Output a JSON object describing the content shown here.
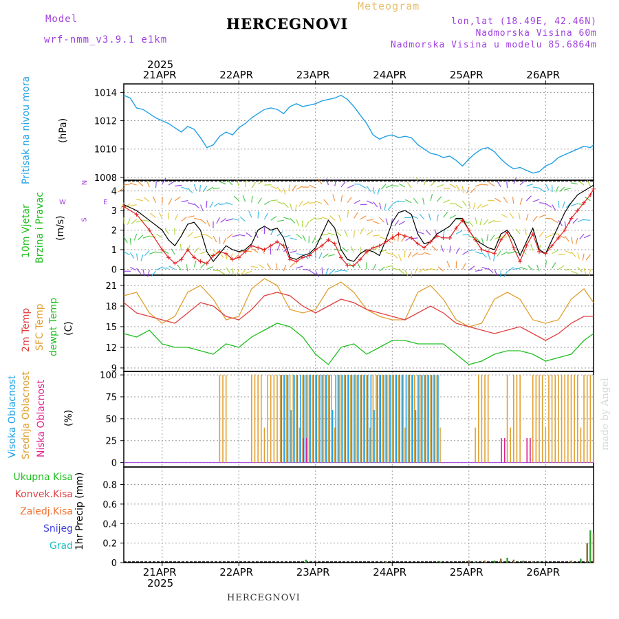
{
  "header": {
    "model_label": "Model",
    "model_name": "wrf-nmm_v3.9.1 e1km",
    "title": "HERCEGNOVI",
    "meteogram_label": "Meteogram",
    "lonlat": "lon,lat (18.49E, 42.46N)",
    "elevation": "Nadmorska Visina 60m",
    "model_elevation": "Nadmorska Visina u modelu 85.6864m"
  },
  "footer": {
    "station": "HERCEGNOVI",
    "watermark": "made by Angel"
  },
  "colors": {
    "pressure": "#1ea0e6",
    "wind_speed": "#000000",
    "wind_gust": "#e02020",
    "temp2m": "#e04040",
    "sfc_temp": "#e0a030",
    "dewpt": "#20c020",
    "cloud_high": "#1ea0e6",
    "cloud_mid": "#e0a030",
    "cloud_low": "#e0208c",
    "grid": "#9a9a9a"
  },
  "x_axis": {
    "year_label": "2025",
    "day_labels": [
      "21APR",
      "22APR",
      "23APR",
      "24APR",
      "25APR",
      "26APR"
    ],
    "hours_start": 0,
    "hours_end": 147,
    "day_ticks_hours": [
      12,
      36,
      60,
      84,
      108,
      132
    ]
  },
  "panels": {
    "pressure": {
      "ylabel_main": "Pritisak na nivou mora",
      "ylabel_unit": "(hPa)"
    },
    "wind": {
      "ylabel1": "10m Vjetar",
      "ylabel2": "Brzina i Pravac",
      "ylabel_unit": "(m/s)",
      "compass_n": "N",
      "compass_s": "S",
      "compass_e": "E",
      "compass_w": "W"
    },
    "temp": {
      "ylabel1": "2m Temp",
      "ylabel2": "SFC Temp",
      "ylabel3": "dewpt Temp",
      "ylabel_unit": "(C)"
    },
    "cloud": {
      "ylabel1": "Visoka Oblacnost",
      "ylabel2": "Srednja Oblacnost",
      "ylabel3": "Niska Oblacnost",
      "ylabel_unit": "(%)"
    },
    "precip": {
      "legend": [
        "Ukupna Kisa",
        "Konvek.Kisa",
        "Zaledj.Kisa",
        "Snijeg",
        "Grad"
      ],
      "ylabel": "1hr Precip (mm)",
      "legend_colors": [
        "#20c020",
        "#e04040",
        "#f07030",
        "#4040e0",
        "#20c0c0"
      ]
    }
  },
  "chart_data": [
    {
      "type": "line",
      "name_key": "pressure",
      "yticks": [
        1008,
        1010,
        1012,
        1014
      ],
      "ylim": [
        1007.8,
        1014.6
      ],
      "x": [
        0,
        2,
        4,
        6,
        8,
        10,
        12,
        14,
        16,
        18,
        20,
        22,
        24,
        26,
        28,
        30,
        32,
        34,
        36,
        38,
        40,
        42,
        44,
        46,
        48,
        50,
        52,
        54,
        56,
        58,
        60,
        62,
        64,
        66,
        68,
        70,
        72,
        74,
        76,
        78,
        80,
        82,
        84,
        86,
        88,
        90,
        92,
        94,
        96,
        98,
        100,
        102,
        104,
        106,
        108,
        110,
        112,
        114,
        116,
        118,
        120,
        122,
        124,
        126,
        128,
        130,
        132,
        134,
        136,
        138,
        140,
        142,
        144,
        146,
        147
      ],
      "y": [
        1013.8,
        1013.6,
        1012.9,
        1012.8,
        1012.5,
        1012.2,
        1012.0,
        1011.8,
        1011.5,
        1011.2,
        1011.6,
        1011.4,
        1010.8,
        1010.1,
        1010.3,
        1010.9,
        1011.2,
        1011.0,
        1011.5,
        1011.8,
        1012.2,
        1012.5,
        1012.8,
        1012.9,
        1012.8,
        1012.5,
        1013.0,
        1013.2,
        1013.0,
        1013.1,
        1013.2,
        1013.4,
        1013.5,
        1013.6,
        1013.8,
        1013.5,
        1013.0,
        1012.4,
        1011.8,
        1011.0,
        1010.7,
        1010.9,
        1011.0,
        1010.8,
        1010.9,
        1010.8,
        1010.3,
        1010.0,
        1009.7,
        1009.6,
        1009.4,
        1009.5,
        1009.2,
        1008.8,
        1009.3,
        1009.7,
        1010.0,
        1010.1,
        1009.8,
        1009.3,
        1008.9,
        1008.6,
        1008.7,
        1008.5,
        1008.3,
        1008.4,
        1008.8,
        1009.0,
        1009.4,
        1009.6,
        1009.8,
        1010.0,
        1010.2,
        1010.1,
        1010.3
      ]
    },
    {
      "type": "line",
      "name_key": "wind",
      "yticks": [
        0,
        1,
        2,
        3,
        4
      ],
      "ylim": [
        -0.3,
        4.55
      ],
      "x": [
        0,
        4,
        8,
        12,
        14,
        16,
        18,
        20,
        22,
        24,
        26,
        28,
        30,
        32,
        34,
        36,
        38,
        40,
        42,
        44,
        46,
        48,
        50,
        52,
        54,
        56,
        58,
        60,
        62,
        64,
        66,
        68,
        70,
        72,
        74,
        76,
        78,
        80,
        82,
        84,
        86,
        88,
        90,
        92,
        94,
        96,
        98,
        100,
        102,
        104,
        106,
        108,
        110,
        112,
        114,
        116,
        118,
        120,
        122,
        124,
        126,
        128,
        130,
        132,
        134,
        136,
        138,
        140,
        142,
        144,
        146,
        147
      ],
      "speed": [
        3.3,
        3.0,
        2.5,
        2.0,
        1.5,
        1.2,
        1.7,
        2.3,
        2.4,
        2.0,
        0.9,
        0.4,
        0.8,
        1.2,
        1.0,
        0.9,
        1.0,
        1.3,
        2.0,
        2.2,
        2.0,
        2.1,
        1.6,
        0.6,
        0.5,
        0.7,
        0.8,
        1.1,
        1.8,
        2.5,
        2.1,
        1.0,
        0.5,
        0.4,
        0.8,
        1.0,
        0.9,
        0.7,
        1.5,
        2.4,
        2.9,
        3.0,
        2.8,
        1.8,
        1.3,
        1.4,
        1.8,
        2.0,
        2.2,
        2.6,
        2.6,
        2.0,
        1.5,
        1.3,
        1.1,
        1.0,
        1.8,
        2.0,
        1.5,
        0.7,
        1.4,
        2.1,
        1.0,
        0.8,
        1.5,
        2.2,
        2.9,
        3.4,
        3.8,
        4.0,
        4.2,
        4.3
      ],
      "gust": [
        3.2,
        2.8,
        2.0,
        1.0,
        0.6,
        0.3,
        0.5,
        1.0,
        0.6,
        0.4,
        0.3,
        0.7,
        0.9,
        0.8,
        0.5,
        0.6,
        0.9,
        1.2,
        1.1,
        1.0,
        1.2,
        1.4,
        1.2,
        0.5,
        0.4,
        0.6,
        0.7,
        1.0,
        1.2,
        1.5,
        1.3,
        0.6,
        0.2,
        0.2,
        0.5,
        0.9,
        1.1,
        1.2,
        1.4,
        1.6,
        1.8,
        1.7,
        1.6,
        1.3,
        1.1,
        1.4,
        1.7,
        1.6,
        1.6,
        2.1,
        2.5,
        2.0,
        1.5,
        1.0,
        0.9,
        0.8,
        1.5,
        1.9,
        1.1,
        0.4,
        1.2,
        1.8,
        0.9,
        0.8,
        1.2,
        1.6,
        2.0,
        2.6,
        3.0,
        3.4,
        3.8,
        4.1
      ]
    },
    {
      "type": "line",
      "name_key": "temp",
      "yticks": [
        9,
        12,
        15,
        18,
        21
      ],
      "ylim": [
        8.5,
        22.5
      ],
      "x": [
        0,
        4,
        8,
        12,
        16,
        20,
        24,
        28,
        32,
        36,
        40,
        44,
        48,
        52,
        56,
        60,
        64,
        68,
        72,
        76,
        80,
        84,
        88,
        92,
        96,
        100,
        104,
        108,
        112,
        116,
        120,
        124,
        128,
        132,
        136,
        140,
        144,
        147
      ],
      "temp2m": [
        18.5,
        17.0,
        16.5,
        16.0,
        15.5,
        17.0,
        18.5,
        18.0,
        16.5,
        16.0,
        17.5,
        19.5,
        20.0,
        19.5,
        18.0,
        17.0,
        18.0,
        19.0,
        18.5,
        17.5,
        17.0,
        16.5,
        16.0,
        17.0,
        18.0,
        17.0,
        15.5,
        15.0,
        14.5,
        14.0,
        14.5,
        15.0,
        14.0,
        13.0,
        14.0,
        15.5,
        16.5,
        16.5
      ],
      "sfc": [
        19.5,
        20.0,
        17.0,
        15.5,
        16.5,
        20.0,
        21.0,
        19.0,
        16.0,
        16.5,
        20.5,
        22.0,
        21.0,
        17.5,
        17.0,
        17.5,
        20.5,
        21.5,
        20.0,
        17.5,
        16.5,
        16.0,
        16.0,
        20.0,
        21.0,
        19.0,
        16.0,
        15.0,
        15.5,
        19.0,
        20.0,
        19.0,
        16.0,
        15.5,
        16.0,
        19.0,
        20.5,
        18.5
      ],
      "dewpt": [
        14.0,
        13.5,
        14.5,
        12.5,
        12.0,
        12.0,
        11.5,
        11.0,
        12.5,
        12.0,
        13.5,
        14.5,
        15.5,
        15.0,
        13.5,
        11.0,
        9.5,
        12.0,
        12.5,
        11.0,
        12.0,
        13.0,
        13.0,
        12.5,
        12.5,
        12.5,
        11.0,
        9.5,
        10.0,
        11.0,
        11.5,
        11.5,
        11.0,
        10.0,
        10.5,
        11.0,
        13.0,
        14.0
      ]
    },
    {
      "type": "bar",
      "name_key": "cloud",
      "yticks": [
        0,
        25,
        50,
        75,
        100
      ],
      "ylim": [
        -5,
        104
      ],
      "note": "hourly cloud cover percent",
      "high_spans": [
        [
          49,
          98
        ]
      ],
      "mid_spans": [
        [
          30,
          32
        ],
        [
          40,
          99
        ],
        [
          110,
          114
        ],
        [
          120,
          124
        ],
        [
          128,
          147
        ]
      ],
      "low_spans": [
        [
          56,
          57
        ],
        [
          118,
          119
        ],
        [
          126,
          127
        ]
      ]
    },
    {
      "type": "bar",
      "name_key": "precip",
      "yticks": [
        0,
        0.2,
        0.4,
        0.6,
        0.8
      ],
      "ylim": [
        0,
        0.98
      ],
      "x": [
        57,
        82,
        99,
        108,
        110,
        113,
        116,
        118,
        120,
        122,
        125,
        128,
        130,
        140,
        143,
        145,
        146,
        147
      ],
      "total": [
        0.03,
        0.01,
        0.01,
        0.02,
        0.01,
        0.02,
        0.02,
        0.04,
        0.05,
        0.03,
        0.02,
        0.01,
        0.01,
        0.02,
        0.04,
        0.2,
        0.33,
        0.3
      ]
    }
  ]
}
